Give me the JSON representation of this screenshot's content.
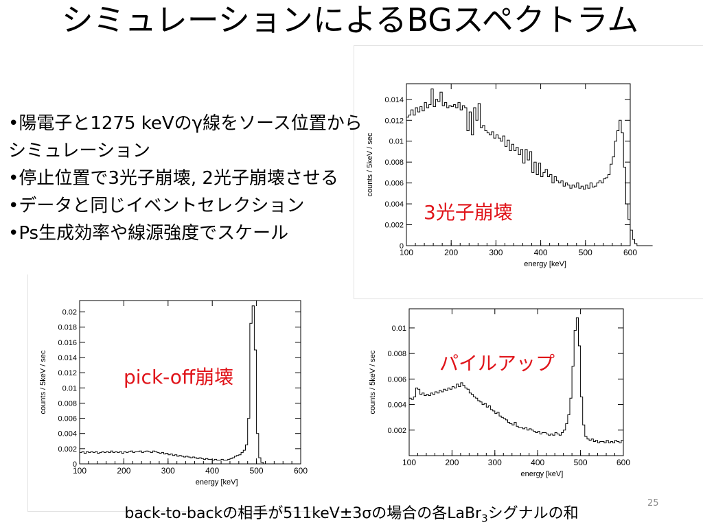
{
  "slide": {
    "title": "シミュレーションによるBGスペクトラム",
    "bullets": [
      "•陽電子と1275 keVのγ線をソース位置からシミュレーション",
      "•停止位置で3光子崩壊, 2光子崩壊させる",
      "•データと同じイベントセレクション",
      "•Ps生成効率や線源強度でスケール"
    ],
    "caption_parts": [
      "back-to-backの相手が511keV±3σの場合の各LaBr",
      "3",
      "シグナルの和"
    ],
    "page_number": "25",
    "accent_color": "#e0141a"
  },
  "chart_data": [
    {
      "type": "histogram",
      "label": "3光子崩壊",
      "xlabel": "energy [keV]",
      "ylabel": "counts / 5keV / sec",
      "xlim": [
        100,
        600
      ],
      "ylim": [
        0,
        0.0155
      ],
      "xticks": [
        100,
        200,
        300,
        400,
        500,
        600
      ],
      "yticks": [
        0,
        0.002,
        0.004,
        0.006,
        0.008,
        0.01,
        0.012,
        0.014
      ],
      "ytick_labels": [
        "0",
        "0.002",
        "0.004",
        "0.006",
        "0.008",
        "0.01",
        "0.012",
        "0.014"
      ],
      "bin_width": 5,
      "x_start": 100,
      "values": [
        0.0123,
        0.0125,
        0.013,
        0.0125,
        0.0132,
        0.0128,
        0.0133,
        0.0129,
        0.0137,
        0.0132,
        0.0135,
        0.015,
        0.0133,
        0.014,
        0.0138,
        0.0147,
        0.0134,
        0.0137,
        0.0132,
        0.0134,
        0.0133,
        0.0135,
        0.0132,
        0.0137,
        0.013,
        0.0134,
        0.0132,
        0.011,
        0.0128,
        0.0106,
        0.0132,
        0.012,
        0.0136,
        0.0113,
        0.0115,
        0.011,
        0.0108,
        0.0106,
        0.0109,
        0.0103,
        0.0106,
        0.0103,
        0.01,
        0.0105,
        0.0095,
        0.0101,
        0.0091,
        0.0097,
        0.0091,
        0.0094,
        0.0087,
        0.0092,
        0.0079,
        0.0092,
        0.0082,
        0.009,
        0.007,
        0.008,
        0.0068,
        0.0079,
        0.0066,
        0.007,
        0.0073,
        0.0066,
        0.0068,
        0.006,
        0.0066,
        0.0062,
        0.006,
        0.0062,
        0.0057,
        0.006,
        0.0058,
        0.0055,
        0.0058,
        0.0056,
        0.006,
        0.0055,
        0.0057,
        0.0054,
        0.0058,
        0.0055,
        0.006,
        0.0056,
        0.0057,
        0.006,
        0.0062,
        0.006,
        0.0064,
        0.0065,
        0.0068,
        0.0078,
        0.0085,
        0.01,
        0.011,
        0.012,
        0.0108,
        0.0075,
        0.004,
        0.0025,
        0.0015,
        0.0006,
        0.0002,
        0.0,
        0.0,
        0.0,
        0.0,
        0.0,
        0.0,
        0.0
      ]
    },
    {
      "type": "histogram",
      "label": "pick-off崩壊",
      "xlabel": "energy [keV]",
      "ylabel": "counts / 5keV / sec",
      "xlim": [
        100,
        600
      ],
      "ylim": [
        0,
        0.0215
      ],
      "xticks": [
        100,
        200,
        300,
        400,
        500,
        600
      ],
      "yticks": [
        0,
        0.002,
        0.004,
        0.006,
        0.008,
        0.01,
        0.012,
        0.014,
        0.016,
        0.018,
        0.02
      ],
      "ytick_labels": [
        "0",
        "0.002",
        "0.004",
        "0.006",
        "0.008",
        "0.01",
        "0.012",
        "0.014",
        "0.016",
        "0.018",
        "0.02"
      ],
      "bin_width": 5,
      "x_start": 100,
      "values": [
        0.0015,
        0.0016,
        0.0014,
        0.0016,
        0.0015,
        0.0016,
        0.0015,
        0.0016,
        0.0014,
        0.0015,
        0.0016,
        0.0015,
        0.0016,
        0.0015,
        0.0017,
        0.0015,
        0.0016,
        0.0015,
        0.0016,
        0.0014,
        0.0016,
        0.0015,
        0.0016,
        0.0017,
        0.0015,
        0.0016,
        0.0016,
        0.0017,
        0.0015,
        0.0016,
        0.0017,
        0.0016,
        0.0015,
        0.0017,
        0.0016,
        0.0015,
        0.0014,
        0.0015,
        0.0013,
        0.0014,
        0.0012,
        0.0013,
        0.0011,
        0.0012,
        0.001,
        0.0011,
        0.001,
        0.0009,
        0.001,
        0.0009,
        0.0008,
        0.0009,
        0.0008,
        0.0007,
        0.0008,
        0.0007,
        0.0006,
        0.0007,
        0.0006,
        0.0006,
        0.0005,
        0.0006,
        0.0005,
        0.0005,
        0.0006,
        0.0005,
        0.0005,
        0.0006,
        0.0007,
        0.0008,
        0.001,
        0.0011,
        0.0012,
        0.0015,
        0.0018,
        0.0025,
        0.006,
        0.0185,
        0.0208,
        0.015,
        0.004,
        0.0008,
        0.0002,
        0.0,
        0.0,
        0.0,
        0.0,
        0.0,
        0.0,
        0.0,
        0.0,
        0.0,
        0.0,
        0.0,
        0.0,
        0.0,
        0.0,
        0.0,
        0.0,
        0.0
      ]
    },
    {
      "type": "histogram",
      "label": "パイルアップ",
      "xlabel": "energy [keV]",
      "ylabel": "counts / 5keV / sec",
      "xlim": [
        100,
        600
      ],
      "ylim": [
        0,
        0.0115
      ],
      "xticks": [
        100,
        200,
        300,
        400,
        500,
        600
      ],
      "yticks": [
        0.002,
        0.004,
        0.006,
        0.008,
        0.01
      ],
      "ytick_labels": [
        "0.002",
        "0.004",
        "0.006",
        "0.008",
        "0.01"
      ],
      "bin_width": 5,
      "x_start": 100,
      "values": [
        0.0045,
        0.0044,
        0.0046,
        0.0053,
        0.0052,
        0.0048,
        0.0049,
        0.0047,
        0.0048,
        0.0047,
        0.0049,
        0.0048,
        0.005,
        0.0049,
        0.0051,
        0.005,
        0.0052,
        0.0051,
        0.0053,
        0.0052,
        0.0054,
        0.0053,
        0.0056,
        0.0054,
        0.0057,
        0.0055,
        0.0053,
        0.0052,
        0.0049,
        0.0048,
        0.0046,
        0.0045,
        0.0043,
        0.0042,
        0.004,
        0.0041,
        0.0038,
        0.0039,
        0.0036,
        0.0035,
        0.0033,
        0.0034,
        0.0031,
        0.003,
        0.0029,
        0.0028,
        0.0026,
        0.0025,
        0.0024,
        0.0026,
        0.0023,
        0.0022,
        0.0022,
        0.0021,
        0.0022,
        0.002,
        0.0021,
        0.002,
        0.0019,
        0.0018,
        0.0019,
        0.0017,
        0.0018,
        0.0018,
        0.0017,
        0.0016,
        0.0017,
        0.0016,
        0.0018,
        0.0017,
        0.0016,
        0.0018,
        0.002,
        0.0025,
        0.0032,
        0.0045,
        0.007,
        0.0098,
        0.0108,
        0.0086,
        0.0046,
        0.0024,
        0.0015,
        0.0013,
        0.0012,
        0.0013,
        0.0011,
        0.0012,
        0.001,
        0.0011,
        0.0011,
        0.001,
        0.0012,
        0.001,
        0.0011,
        0.001,
        0.0012,
        0.0011,
        0.001,
        0.0012
      ]
    }
  ]
}
